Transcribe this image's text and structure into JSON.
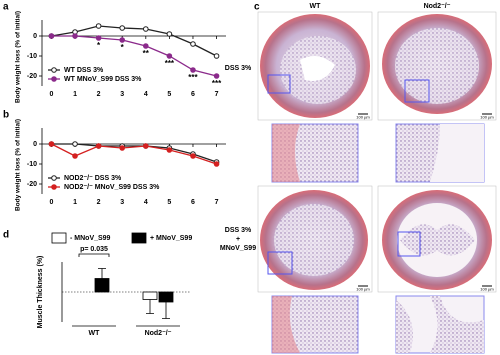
{
  "chart_data": [
    {
      "panel": "a",
      "type": "line",
      "ylabel": "Body weight loss (% of initial)",
      "x": [
        0,
        1,
        2,
        3,
        4,
        5,
        6,
        7
      ],
      "xlim": [
        -0.4,
        7.4
      ],
      "xticks": [
        0,
        1,
        2,
        3,
        4,
        5,
        6,
        7
      ],
      "ylim": [
        -25,
        8
      ],
      "yticks": [
        -20,
        -10,
        0
      ],
      "legend": "lower left",
      "series": [
        {
          "name": "WT DSS 3%",
          "color": "#222222",
          "values": [
            0,
            2,
            5,
            4,
            3.5,
            1,
            -4,
            -10
          ]
        },
        {
          "name": "WT MNoV_S99 DSS 3%",
          "color": "#8b2a8b",
          "values": [
            0,
            0,
            -1,
            -2,
            -5,
            -10,
            -17,
            -20
          ]
        }
      ],
      "annotations": [
        {
          "x": 2,
          "text": "*"
        },
        {
          "x": 3,
          "text": "*"
        },
        {
          "x": 4,
          "text": "**"
        },
        {
          "x": 5,
          "text": "***"
        },
        {
          "x": 6,
          "text": "***"
        },
        {
          "x": 7,
          "text": "***"
        }
      ]
    },
    {
      "panel": "b",
      "type": "line",
      "ylabel": "Body weight loss (% of initial)",
      "x": [
        0,
        1,
        2,
        3,
        4,
        5,
        6,
        7
      ],
      "xlim": [
        -0.4,
        7.4
      ],
      "xticks": [
        0,
        1,
        2,
        3,
        4,
        5,
        6,
        7
      ],
      "ylim": [
        -25,
        8
      ],
      "yticks": [
        -20,
        -10,
        0
      ],
      "legend": "lower left",
      "series": [
        {
          "name": "NOD2⁻/⁻ DSS 3%",
          "color": "#222222",
          "values": [
            0,
            0,
            -1,
            -1,
            -1,
            -2,
            -5,
            -9
          ]
        },
        {
          "name": "NOD2⁻/⁻ MNoV_S99 DSS 3%",
          "color": "#d42020",
          "values": [
            0,
            -6,
            -1,
            -2,
            -1,
            -3,
            -6,
            -10
          ]
        }
      ]
    },
    {
      "panel": "d",
      "type": "bar",
      "ylabel": "Muscle Thickness (%)",
      "categories": [
        "WT",
        "Nod2⁻/⁻"
      ],
      "ylim": [
        -60,
        60
      ],
      "legend": "top",
      "series": [
        {
          "name": "- MNoV_S99",
          "color": "#ffffff",
          "values": [
            0,
            -15
          ],
          "errors": [
            null,
            28
          ]
        },
        {
          "name": "+ MNoV_S99",
          "color": "#000000",
          "values": [
            27,
            -20
          ],
          "errors": [
            20,
            33
          ]
        }
      ],
      "annotation": "p= 0.035"
    }
  ],
  "histology": {
    "panel": "c",
    "columns": [
      "WT",
      "Nod2⁻/⁻"
    ],
    "rows": [
      [
        "DSS 3%"
      ],
      [
        "DSS 3%",
        "+",
        "MNoV_S99"
      ]
    ],
    "scale_bar": "100 µm"
  }
}
